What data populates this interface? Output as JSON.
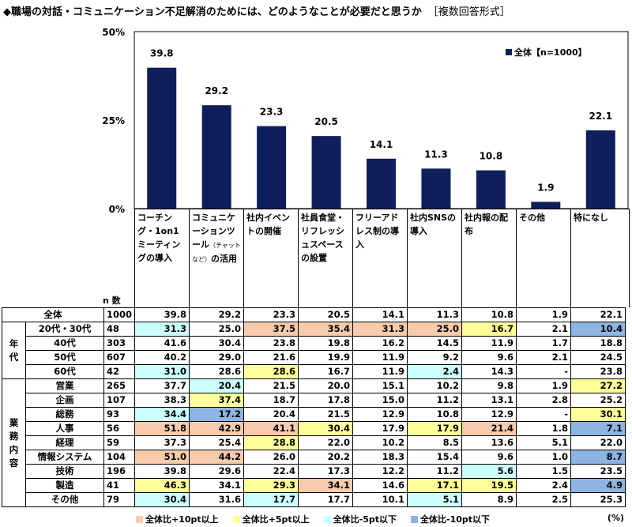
{
  "title": "◆職場の対話・コミュニケーション不足解消のためには、どのようなことが必要だと思うか",
  "format_tag": "［複数回答形式］",
  "n_label": "n 数",
  "unit": "(%)",
  "colors": {
    "bar": "#0e1f5b",
    "hi10": "#f8cbad",
    "hi5": "#ffff99",
    "lo5": "#ccffff",
    "lo10": "#8eb4e3"
  },
  "legend": [
    {
      "key": "hi10",
      "label": "全体比+10pt以上"
    },
    {
      "key": "hi5",
      "label": "全体比+5pt以上"
    },
    {
      "key": "lo5",
      "label": "全体比-5pt以下"
    },
    {
      "key": "lo10",
      "label": "全体比-10pt以下"
    }
  ],
  "categories_display": [
    {
      "main": "コーチング・1on1ミーティングの導入",
      "sub": "",
      "tail": ""
    },
    {
      "main": "コミュニケーションツール",
      "sub": "（チャットなど）",
      "tail": "の活用"
    },
    {
      "main": "社内イベントの開催",
      "sub": "",
      "tail": ""
    },
    {
      "main": "社員食堂・リフレッシュスペースの設置",
      "sub": "",
      "tail": ""
    },
    {
      "main": "フリーアドレス制の導入",
      "sub": "",
      "tail": ""
    },
    {
      "main": "社内SNSの導入",
      "sub": "",
      "tail": ""
    },
    {
      "main": "社内報の配布",
      "sub": "",
      "tail": ""
    },
    {
      "main": "その他",
      "sub": "",
      "tail": ""
    },
    {
      "main": "特になし",
      "sub": "",
      "tail": ""
    }
  ],
  "chart_data": {
    "type": "bar",
    "categories": [
      "コーチング・1on1ミーティングの導入",
      "コミュニケーションツール（チャットなど）の活用",
      "社内イベントの開催",
      "社員食堂・リフレッシュスペースの設置",
      "フリーアドレス制の導入",
      "社内SNSの導入",
      "社内報の配布",
      "その他",
      "特になし"
    ],
    "series": [
      {
        "name": "全体【n=1000】",
        "values": [
          39.8,
          29.2,
          23.3,
          20.5,
          14.1,
          11.3,
          10.8,
          1.9,
          22.1
        ]
      }
    ],
    "ylim": [
      0,
      50
    ],
    "yticks": [
      "0%",
      "25%",
      "50%"
    ],
    "legend_position": "top-right",
    "grid": false
  },
  "table": {
    "rows": [
      {
        "group": "",
        "label": "全体",
        "n": "1000",
        "values": [
          "39.8",
          "29.2",
          "23.3",
          "20.5",
          "14.1",
          "11.3",
          "10.8",
          "1.9",
          "22.1"
        ],
        "hl": [
          "",
          "",
          "",
          "",
          "",
          "",
          "",
          "",
          ""
        ]
      },
      {
        "group": "年代",
        "label": "20代・30代",
        "n": "48",
        "values": [
          "31.3",
          "25.0",
          "37.5",
          "35.4",
          "31.3",
          "25.0",
          "16.7",
          "2.1",
          "10.4"
        ],
        "hl": [
          "lo5",
          "",
          "hi10",
          "hi10",
          "hi10",
          "hi10",
          "hi5",
          "",
          "lo10"
        ]
      },
      {
        "group": "年代",
        "label": "40代",
        "n": "303",
        "values": [
          "41.6",
          "30.4",
          "23.8",
          "19.8",
          "16.2",
          "14.5",
          "11.9",
          "1.7",
          "18.8"
        ],
        "hl": [
          "",
          "",
          "",
          "",
          "",
          "",
          "",
          "",
          ""
        ]
      },
      {
        "group": "年代",
        "label": "50代",
        "n": "607",
        "values": [
          "40.2",
          "29.0",
          "21.6",
          "19.9",
          "11.9",
          "9.2",
          "9.6",
          "2.1",
          "24.5"
        ],
        "hl": [
          "",
          "",
          "",
          "",
          "",
          "",
          "",
          "",
          ""
        ]
      },
      {
        "group": "年代",
        "label": "60代",
        "n": "42",
        "values": [
          "31.0",
          "28.6",
          "28.6",
          "16.7",
          "11.9",
          "2.4",
          "14.3",
          "-",
          "23.8"
        ],
        "hl": [
          "lo5",
          "",
          "hi5",
          "",
          "",
          "lo5",
          "",
          "",
          ""
        ]
      },
      {
        "group": "業務内容",
        "label": "営業",
        "n": "265",
        "values": [
          "37.7",
          "20.4",
          "21.5",
          "20.0",
          "15.1",
          "10.2",
          "9.8",
          "1.9",
          "27.2"
        ],
        "hl": [
          "",
          "lo5",
          "",
          "",
          "",
          "",
          "",
          "",
          "hi5"
        ]
      },
      {
        "group": "業務内容",
        "label": "企画",
        "n": "107",
        "values": [
          "38.3",
          "37.4",
          "18.7",
          "17.8",
          "15.0",
          "11.2",
          "13.1",
          "2.8",
          "25.2"
        ],
        "hl": [
          "",
          "hi5",
          "",
          "",
          "",
          "",
          "",
          "",
          ""
        ]
      },
      {
        "group": "業務内容",
        "label": "総務",
        "n": "93",
        "values": [
          "34.4",
          "17.2",
          "20.4",
          "21.5",
          "12.9",
          "10.8",
          "12.9",
          "-",
          "30.1"
        ],
        "hl": [
          "lo5",
          "lo10",
          "",
          "",
          "",
          "",
          "",
          "",
          "hi5"
        ]
      },
      {
        "group": "業務内容",
        "label": "人事",
        "n": "56",
        "values": [
          "51.8",
          "42.9",
          "41.1",
          "30.4",
          "17.9",
          "17.9",
          "21.4",
          "1.8",
          "7.1"
        ],
        "hl": [
          "hi10",
          "hi10",
          "hi10",
          "hi5",
          "",
          "hi5",
          "hi10",
          "",
          "lo10"
        ]
      },
      {
        "group": "業務内容",
        "label": "経理",
        "n": "59",
        "values": [
          "37.3",
          "25.4",
          "28.8",
          "22.0",
          "10.2",
          "8.5",
          "13.6",
          "5.1",
          "22.0"
        ],
        "hl": [
          "",
          "",
          "hi5",
          "",
          "",
          "",
          "",
          "",
          ""
        ]
      },
      {
        "group": "業務内容",
        "label": "情報システム",
        "n": "104",
        "values": [
          "51.0",
          "44.2",
          "26.0",
          "20.2",
          "18.3",
          "15.4",
          "9.6",
          "1.0",
          "8.7"
        ],
        "hl": [
          "hi10",
          "hi10",
          "",
          "",
          "",
          "",
          "",
          "",
          "lo10"
        ]
      },
      {
        "group": "業務内容",
        "label": "技術",
        "n": "196",
        "values": [
          "39.8",
          "29.6",
          "22.4",
          "17.3",
          "12.2",
          "11.2",
          "5.6",
          "1.5",
          "23.5"
        ],
        "hl": [
          "",
          "",
          "",
          "",
          "",
          "",
          "lo5",
          "",
          ""
        ]
      },
      {
        "group": "業務内容",
        "label": "製造",
        "n": "41",
        "values": [
          "46.3",
          "34.1",
          "29.3",
          "34.1",
          "14.6",
          "17.1",
          "19.5",
          "2.4",
          "4.9"
        ],
        "hl": [
          "hi5",
          "",
          "hi5",
          "hi10",
          "",
          "hi5",
          "hi5",
          "",
          "lo10"
        ]
      },
      {
        "group": "業務内容",
        "label": "その他",
        "n": "79",
        "values": [
          "30.4",
          "31.6",
          "17.7",
          "17.7",
          "10.1",
          "5.1",
          "8.9",
          "2.5",
          "25.3"
        ],
        "hl": [
          "lo5",
          "",
          "lo5",
          "",
          "",
          "lo5",
          "",
          "",
          ""
        ]
      }
    ],
    "groups": [
      {
        "name": "年代",
        "chars": [
          "年",
          "代"
        ]
      },
      {
        "name": "業務内容",
        "chars": [
          "業",
          "務",
          "内",
          "容"
        ]
      }
    ]
  }
}
